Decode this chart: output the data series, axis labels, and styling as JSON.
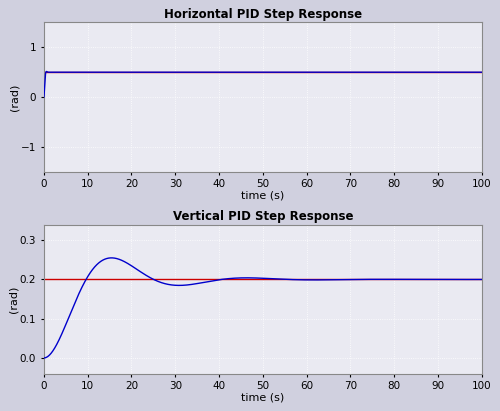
{
  "title1": "Horizontal PID Step Response",
  "title2": "Vertical PID Step Response",
  "xlabel": "time (s)",
  "ylabel": "(rad)",
  "xlim": [
    0,
    100
  ],
  "ylim1": [
    -1.5,
    1.5
  ],
  "ylim2": [
    -0.04,
    0.34
  ],
  "yticks1": [
    -1,
    0,
    1
  ],
  "yticks2": [
    0,
    0.1,
    0.2,
    0.3
  ],
  "xticks": [
    0,
    10,
    20,
    30,
    40,
    50,
    60,
    70,
    80,
    90,
    100
  ],
  "setpoint1": 0.5,
  "setpoint2": 0.2,
  "bg_color": "#eaeaf2",
  "fig_bg": "#d0d0df",
  "line_blue": "#0000cc",
  "line_red": "#cc0000"
}
